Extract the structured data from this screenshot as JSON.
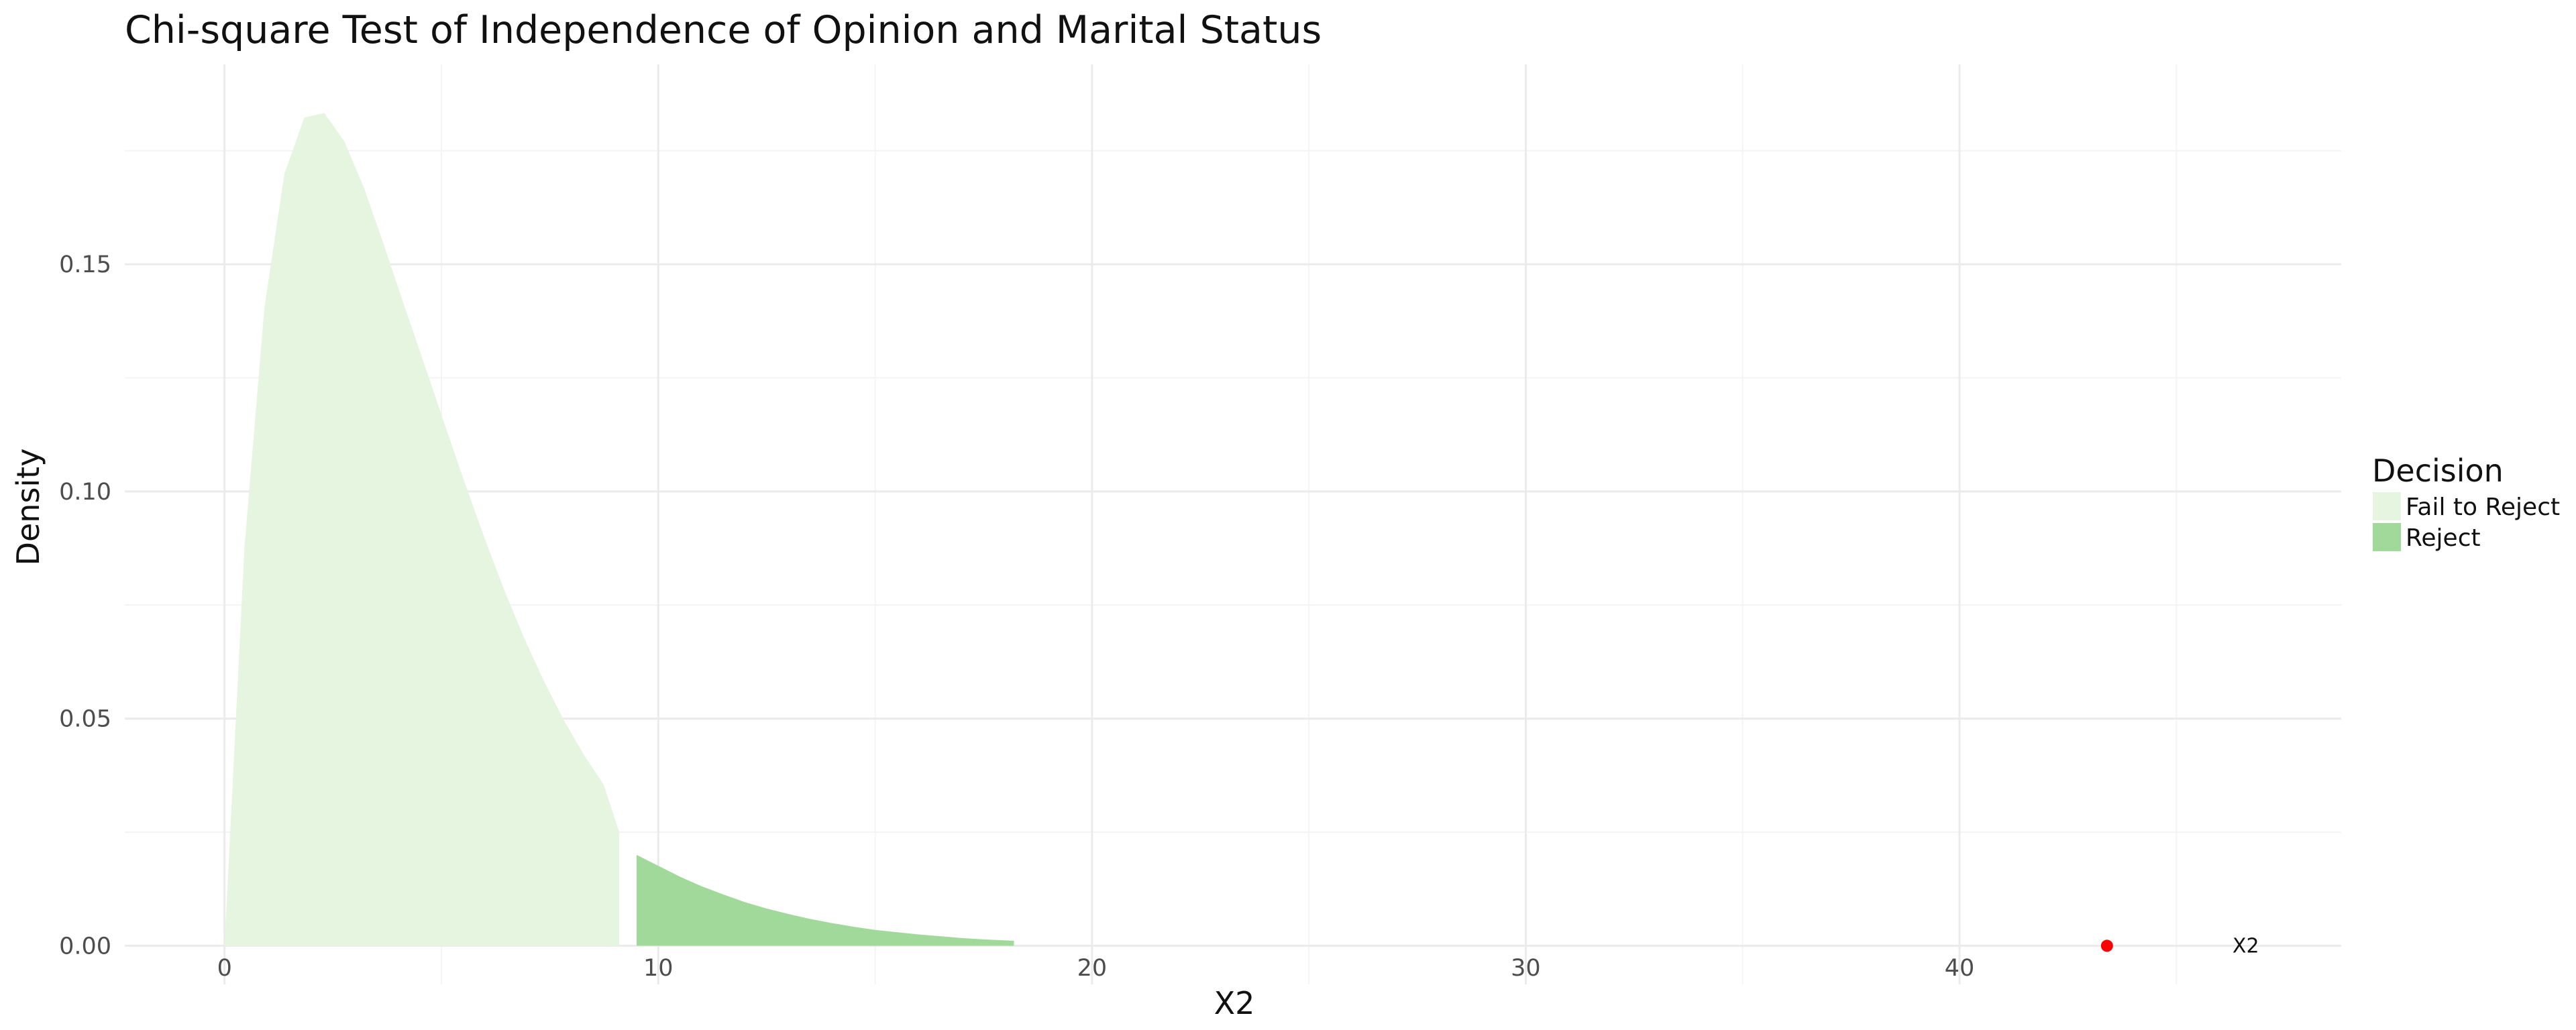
{
  "chart_data": {
    "type": "area",
    "title": "Chi-square Test of Independence of Opinion and Marital Status",
    "xlabel": "X2",
    "ylabel": "Density",
    "xlim": [
      -2.3,
      48.8
    ],
    "ylim": [
      -0.0085,
      0.194
    ],
    "x_ticks": [
      0,
      10,
      20,
      30,
      40
    ],
    "x_tick_labels": [
      "0",
      "10",
      "20",
      "30",
      "40"
    ],
    "y_ticks": [
      0.0,
      0.05,
      0.1,
      0.15
    ],
    "y_tick_labels": [
      "0.00",
      "0.05",
      "0.10",
      "0.15"
    ],
    "grid": true,
    "legend": {
      "title": "Decision",
      "position": "right",
      "entries": [
        {
          "label": "Fail to Reject",
          "color": "#e5f5e0"
        },
        {
          "label": "Reject",
          "color": "#a1d99b"
        }
      ]
    },
    "series": [
      {
        "name": "Fail to Reject",
        "color": "#e5f5e0",
        "x": [
          0.0,
          0.46,
          0.92,
          1.38,
          1.84,
          2.3,
          2.76,
          3.22,
          3.68,
          4.14,
          4.6,
          5.06,
          5.52,
          5.98,
          6.44,
          6.9,
          7.36,
          7.82,
          8.28,
          8.74,
          9.1
        ],
        "y": [
          0.0,
          0.0878,
          0.1405,
          0.1699,
          0.1823,
          0.1833,
          0.1771,
          0.1667,
          0.1541,
          0.141,
          0.1282,
          0.1152,
          0.1024,
          0.0901,
          0.0785,
          0.0679,
          0.0583,
          0.0497,
          0.0421,
          0.0355,
          0.025
        ]
      },
      {
        "name": "Reject",
        "color": "#a1d99b",
        "x": [
          9.5,
          10.0,
          10.5,
          11.0,
          11.5,
          12.0,
          12.5,
          13.0,
          13.5,
          14.0,
          14.5,
          15.0,
          15.5,
          16.0,
          16.5,
          17.0,
          17.5,
          18.2
        ],
        "y": [
          0.02,
          0.0176,
          0.0152,
          0.0131,
          0.0113,
          0.0096,
          0.0082,
          0.007,
          0.0059,
          0.005,
          0.0042,
          0.0035,
          0.003,
          0.0025,
          0.0021,
          0.0017,
          0.0014,
          0.0011
        ]
      }
    ],
    "point": {
      "x": 43.4,
      "y": 0.0,
      "color": "#ff0000"
    },
    "annotation": {
      "text": "X2",
      "x": 46.6,
      "y": 0.0
    }
  }
}
